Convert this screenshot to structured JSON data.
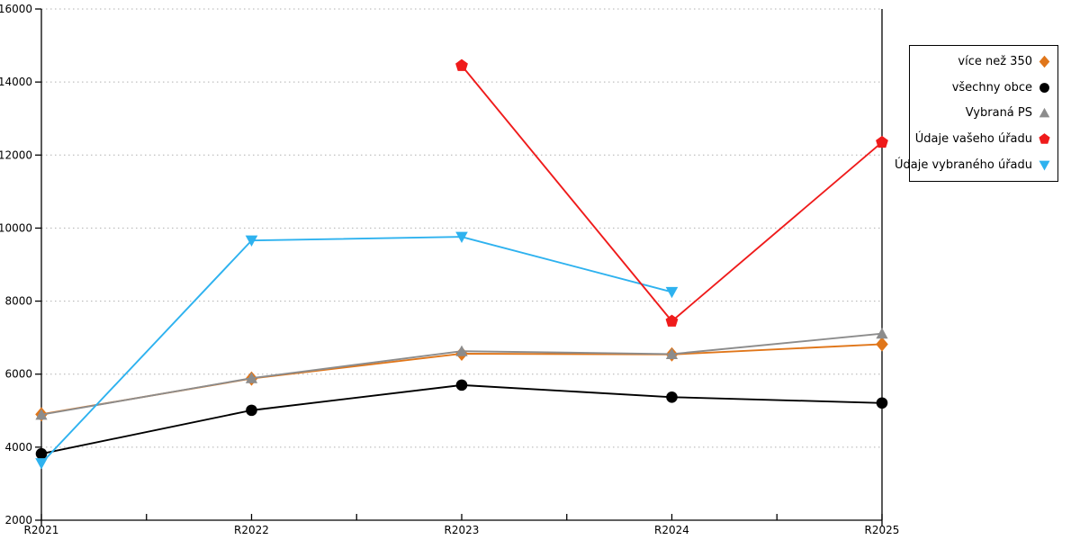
{
  "page": {
    "background": "#ffffff"
  },
  "chart_data": {
    "type": "line",
    "title": "",
    "xlabel": "",
    "ylabel": "",
    "categories": [
      "R2021",
      "R2022",
      "R2023",
      "R2024",
      "R2025"
    ],
    "series": [
      {
        "name": "více než 350",
        "color": "#e0761a",
        "marker": "diamond",
        "values": [
          4900,
          5880,
          6560,
          6540,
          6820
        ]
      },
      {
        "name": "všechny obce",
        "color": "#000000",
        "marker": "circle",
        "values": [
          3820,
          5010,
          5700,
          5370,
          5210
        ]
      },
      {
        "name": "Vybraná PS",
        "color": "#8c8c8c",
        "marker": "triangle-up",
        "values": [
          4890,
          5890,
          6630,
          6550,
          7110
        ]
      },
      {
        "name": "Údaje vašeho úřadu",
        "color": "#ef1b1b",
        "marker": "pentagon",
        "values": [
          null,
          null,
          14450,
          7450,
          12350
        ]
      },
      {
        "name": "Údaje vybraného úřadu",
        "color": "#2eb2ef",
        "marker": "triangle-down",
        "values": [
          3560,
          9660,
          9760,
          8250,
          null
        ]
      }
    ],
    "ylim": [
      2000,
      16000
    ],
    "yticks": [
      2000,
      4000,
      6000,
      8000,
      10000,
      12000,
      14000,
      16000
    ],
    "ytick_labels": [
      "2000",
      "4000",
      "6000",
      "8000",
      "10000",
      "12000",
      "14000",
      "16000"
    ],
    "grid": "horizontal-dotted",
    "grid_color": "#b0b0b0",
    "axis_color": "#000000",
    "legend_position": "outside-top-right",
    "minor_xticks": "midpoints-between-categories",
    "draw_order": [
      0,
      1,
      2,
      4,
      3
    ]
  }
}
